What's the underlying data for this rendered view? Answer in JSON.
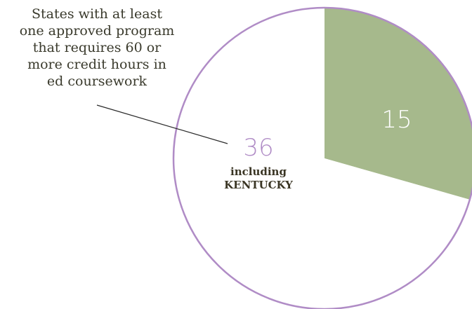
{
  "chart_data": {
    "type": "pie",
    "slices": [
      {
        "value": 15,
        "label": "15",
        "color": "#a6b98c"
      },
      {
        "value": 36,
        "label": "36",
        "color": "#ffffff"
      }
    ],
    "ring_color": "#b08cc6",
    "callout": {
      "lines": [
        "States with at least",
        "one approved program",
        "that requires 60 or",
        "more credit hours in",
        "ed coursework"
      ],
      "number": "36",
      "number_color": "#b08cc6",
      "sub_lines": [
        "including",
        "KENTUCKY"
      ]
    },
    "slice_label_color": "#ffffff"
  }
}
